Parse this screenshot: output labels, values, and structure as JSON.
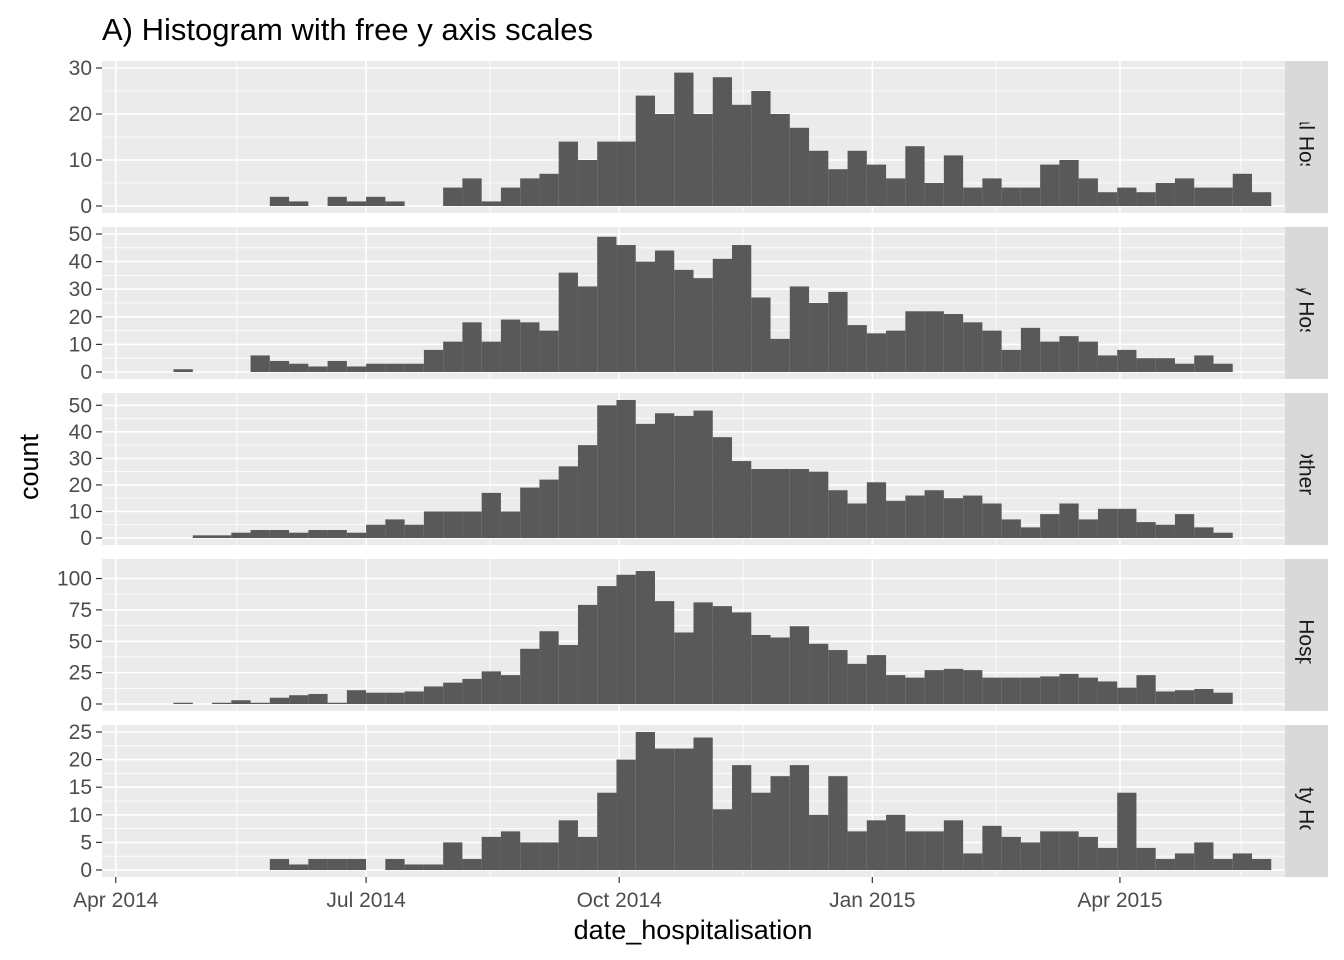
{
  "title": "A) Histogram with free y axis scales",
  "chart_data": {
    "type": "bar",
    "title": "A) Histogram with free y axis scales",
    "xlabel": "date_hospitalisation",
    "ylabel": "count",
    "x_tick_labels": [
      "Apr 2014",
      "Jul 2014",
      "Oct 2014",
      "Jan 2015",
      "Apr 2015"
    ],
    "x_tick_dates": [
      "2014-04-01",
      "2014-07-01",
      "2014-10-01",
      "2015-01-01",
      "2015-04-01"
    ],
    "xlim": [
      "2014-03-27",
      "2015-05-31"
    ],
    "bin_start": "2014-04-22",
    "bin_width_days": 7,
    "grid": true,
    "legend": "none",
    "colors": {
      "panel_bg": "#EBEBEB",
      "grid": "#FFFFFF",
      "bar": "#595959",
      "strip_bg": "#D9D9D9"
    },
    "panels": [
      {
        "strip": "Central Hospital",
        "ylim": [
          0,
          30
        ],
        "y_ticks": [
          0,
          10,
          20,
          30
        ],
        "y_tick_labels": [
          "0",
          "10",
          "20",
          "30"
        ],
        "values": [
          0,
          0,
          0,
          0,
          0,
          2,
          1,
          0,
          2,
          1,
          2,
          1,
          0,
          0,
          4,
          6,
          1,
          4,
          6,
          7,
          14,
          10,
          14,
          14,
          24,
          20,
          29,
          20,
          28,
          22,
          25,
          20,
          17,
          12,
          8,
          12,
          9,
          6,
          13,
          5,
          11,
          4,
          6,
          4,
          4,
          9,
          10,
          6,
          3,
          4,
          3,
          5,
          6,
          4,
          4,
          7,
          3
        ]
      },
      {
        "strip": "Military Hospital",
        "ylim": [
          0,
          50
        ],
        "y_ticks": [
          0,
          10,
          20,
          30,
          40,
          50
        ],
        "y_tick_labels": [
          "0",
          "10",
          "20",
          "30",
          "40",
          "50"
        ],
        "values": [
          1,
          0,
          0,
          0,
          6,
          4,
          3,
          2,
          4,
          2,
          3,
          3,
          3,
          8,
          11,
          18,
          11,
          19,
          18,
          15,
          36,
          31,
          49,
          46,
          40,
          44,
          37,
          34,
          41,
          46,
          27,
          12,
          31,
          25,
          29,
          17,
          14,
          15,
          22,
          22,
          21,
          18,
          15,
          8,
          16,
          11,
          13,
          11,
          6,
          8,
          5,
          5,
          3,
          6,
          3
        ]
      },
      {
        "strip": "Other",
        "ylim": [
          0,
          52
        ],
        "y_ticks": [
          0,
          10,
          20,
          30,
          40,
          50
        ],
        "y_tick_labels": [
          "0",
          "10",
          "20",
          "30",
          "40",
          "50"
        ],
        "values": [
          0,
          1,
          1,
          2,
          3,
          3,
          2,
          3,
          3,
          2,
          5,
          7,
          5,
          10,
          10,
          10,
          17,
          10,
          19,
          22,
          27,
          35,
          50,
          52,
          43,
          47,
          46,
          48,
          38,
          29,
          26,
          26,
          26,
          25,
          18,
          13,
          21,
          14,
          16,
          18,
          15,
          16,
          13,
          7,
          4,
          9,
          13,
          7,
          11,
          11,
          6,
          5,
          9,
          4,
          2
        ]
      },
      {
        "strip": "Port Hospital",
        "ylim": [
          0,
          110
        ],
        "y_ticks": [
          0,
          25,
          50,
          75,
          100
        ],
        "y_tick_labels": [
          "0",
          "25",
          "50",
          "75",
          "100"
        ],
        "values": [
          1,
          0,
          1,
          3,
          1,
          5,
          7,
          8,
          1,
          11,
          9,
          9,
          10,
          14,
          17,
          20,
          26,
          23,
          44,
          58,
          47,
          79,
          94,
          103,
          106,
          82,
          57,
          81,
          78,
          73,
          55,
          53,
          62,
          48,
          43,
          32,
          39,
          23,
          21,
          27,
          28,
          27,
          21,
          21,
          21,
          22,
          24,
          21,
          18,
          13,
          23,
          10,
          11,
          12,
          9
        ]
      },
      {
        "strip": "Maternity Hospital",
        "ylim": [
          0,
          25
        ],
        "y_ticks": [
          0,
          5,
          10,
          15,
          20,
          25
        ],
        "y_tick_labels": [
          "0",
          "5",
          "10",
          "15",
          "20",
          "25"
        ],
        "values": [
          0,
          0,
          0,
          0,
          0,
          2,
          1,
          2,
          2,
          2,
          0,
          2,
          1,
          1,
          5,
          2,
          6,
          7,
          5,
          5,
          9,
          6,
          14,
          20,
          25,
          22,
          22,
          24,
          11,
          19,
          14,
          17,
          19,
          10,
          17,
          7,
          9,
          10,
          7,
          7,
          9,
          3,
          8,
          6,
          5,
          7,
          7,
          6,
          4,
          14,
          4,
          2,
          3,
          5,
          2,
          3,
          2
        ]
      }
    ]
  }
}
